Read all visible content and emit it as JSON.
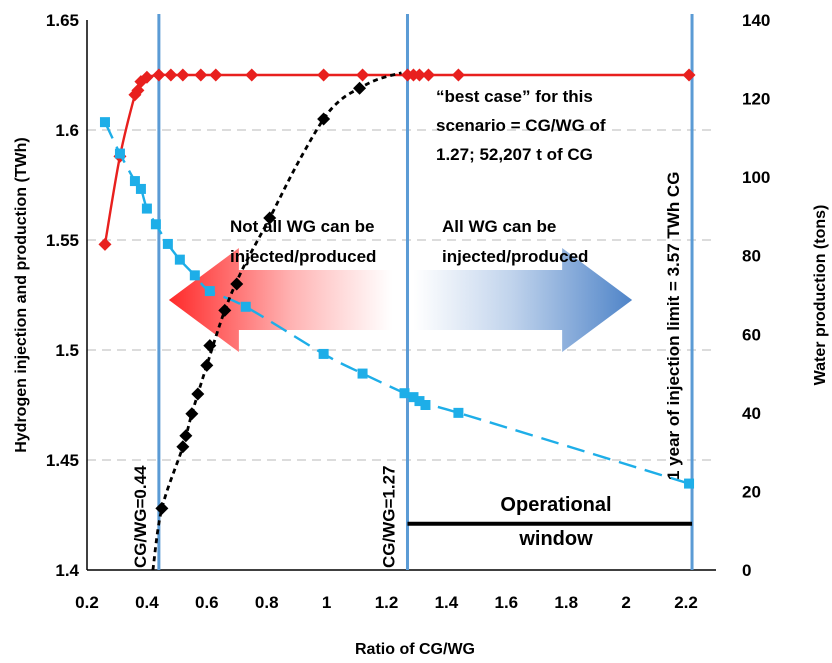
{
  "chart_data": {
    "type": "line",
    "xlabel": "Ratio of CG/WG",
    "ylabel_left": "Hydrogen injection and production (TWh)",
    "ylabel_right": "Water production (tons)",
    "xlim": [
      0.2,
      2.3
    ],
    "ylim_left": [
      1.4,
      1.65
    ],
    "ylim_right": [
      0,
      140
    ],
    "x_ticks": [
      "0.2",
      "0.4",
      "0.6",
      "0.8",
      "1",
      "1.2",
      "1.4",
      "1.6",
      "1.8",
      "2",
      "2.2"
    ],
    "y_ticks_left": [
      "1.4",
      "1.45",
      "1.5",
      "1.55",
      "1.6",
      "1.65"
    ],
    "y_ticks_right": [
      "0",
      "20",
      "40",
      "60",
      "80",
      "100",
      "120",
      "140"
    ],
    "grid": "horizontal dashed",
    "series": [
      {
        "key": "hydrogen",
        "axis": "left",
        "color": "#e8201e",
        "marker": "diamond",
        "line": "solid",
        "points": [
          [
            0.26,
            1.548
          ],
          [
            0.31,
            1.588
          ],
          [
            0.36,
            1.616
          ],
          [
            0.37,
            1.618
          ],
          [
            0.38,
            1.622
          ],
          [
            0.4,
            1.624
          ],
          [
            0.44,
            1.625
          ],
          [
            0.48,
            1.625
          ],
          [
            0.52,
            1.625
          ],
          [
            0.58,
            1.625
          ],
          [
            0.63,
            1.625
          ],
          [
            0.75,
            1.625
          ],
          [
            0.99,
            1.625
          ],
          [
            1.12,
            1.625
          ],
          [
            1.27,
            1.625
          ],
          [
            1.29,
            1.625
          ],
          [
            1.31,
            1.625
          ],
          [
            1.34,
            1.625
          ],
          [
            1.44,
            1.625
          ],
          [
            2.21,
            1.625
          ]
        ]
      },
      {
        "key": "water",
        "axis": "right",
        "color": "#1eaee8",
        "marker": "square",
        "line": "dashed",
        "points": [
          [
            0.26,
            114
          ],
          [
            0.31,
            106
          ],
          [
            0.36,
            99
          ],
          [
            0.38,
            97
          ],
          [
            0.4,
            92
          ],
          [
            0.43,
            88
          ],
          [
            0.47,
            83
          ],
          [
            0.51,
            79
          ],
          [
            0.56,
            75
          ],
          [
            0.61,
            71
          ],
          [
            0.73,
            67
          ],
          [
            0.99,
            55
          ],
          [
            1.12,
            50
          ],
          [
            1.26,
            45
          ],
          [
            1.29,
            44
          ],
          [
            1.31,
            43
          ],
          [
            1.33,
            42
          ],
          [
            1.44,
            40
          ],
          [
            2.21,
            22
          ]
        ]
      },
      {
        "key": "cg",
        "axis": "left",
        "color": "#000000",
        "marker": "diamond",
        "line": "dotted",
        "points": [
          [
            0.45,
            1.428
          ],
          [
            0.52,
            1.456
          ],
          [
            0.53,
            1.461
          ],
          [
            0.55,
            1.471
          ],
          [
            0.57,
            1.48
          ],
          [
            0.6,
            1.493
          ],
          [
            0.61,
            1.502
          ],
          [
            0.66,
            1.518
          ],
          [
            0.7,
            1.53
          ],
          [
            0.81,
            1.56
          ],
          [
            0.99,
            1.605
          ],
          [
            1.11,
            1.619
          ]
        ],
        "curve": [
          [
            0.42,
            1.4
          ],
          [
            0.45,
            1.428
          ],
          [
            0.52,
            1.456
          ],
          [
            0.55,
            1.471
          ],
          [
            0.6,
            1.493
          ],
          [
            0.66,
            1.518
          ],
          [
            0.72,
            1.537
          ],
          [
            0.81,
            1.56
          ],
          [
            0.9,
            1.584
          ],
          [
            0.99,
            1.605
          ],
          [
            1.05,
            1.614
          ],
          [
            1.11,
            1.619
          ],
          [
            1.17,
            1.623
          ],
          [
            1.25,
            1.626
          ]
        ]
      }
    ],
    "vertical_lines": [
      {
        "x": 0.44,
        "label": "CG/WG=0.44"
      },
      {
        "x": 1.27,
        "label": "CG/WG=1.27"
      },
      {
        "x": 2.22,
        "label": "1 year of injection limit = 3.57 TWh CG"
      }
    ],
    "operational_window": {
      "x_start": 1.27,
      "x_end": 2.22,
      "y": 1.421,
      "label_line1": "Operational",
      "label_line2": "window"
    },
    "annotations": {
      "best_case": [
        "“best case” for this",
        "scenario = CG/WG of",
        "1.27; 52,207 t of CG"
      ],
      "not_all": [
        "Not all WG can be",
        "injected/produced"
      ],
      "all": [
        "All WG can be",
        "injected/produced"
      ]
    }
  }
}
